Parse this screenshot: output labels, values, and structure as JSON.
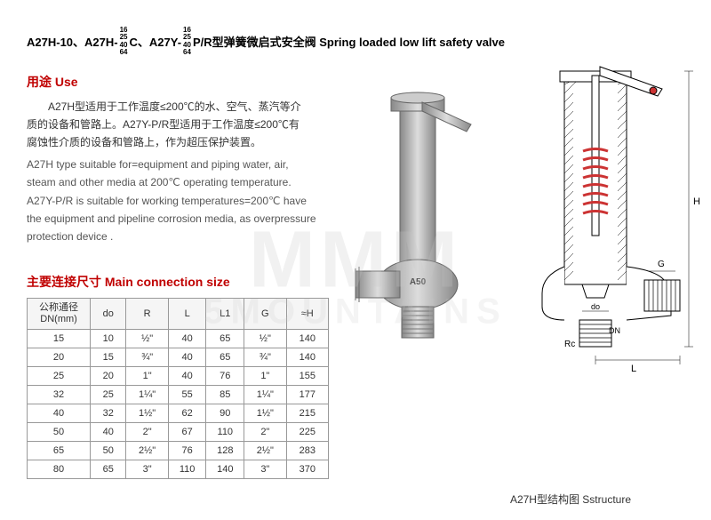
{
  "title": {
    "part1": "A27H-10、A27H-",
    "frac1": [
      "16",
      "25",
      "40",
      "64"
    ],
    "part2": "C、A27Y-",
    "frac2": [
      "16",
      "25",
      "40",
      "64"
    ],
    "part3": "P/R型弹簧微启式安全阀 Spring loaded low lift safety valve"
  },
  "use_header": "用途 Use",
  "use_cn_line1": "A27H型适用于工作温度≤200℃的水、空气、蒸汽等介",
  "use_cn_line2": "质的设备和管路上。A27Y-P/R型适用于工作温度≤200℃有",
  "use_cn_line3": "腐蚀性介质的设备和管路上，作为超压保护装置。",
  "use_en_line1": "A27H type suitable for=equipment and piping water, air,",
  "use_en_line2": "steam and other media at 200℃ operating temperature.",
  "use_en_line3": "A27Y-P/R is suitable for working temperatures=200℃ have",
  "use_en_line4": "the equipment and pipeline corrosion media, as overpressure",
  "use_en_line5": "protection device .",
  "table_header": "主要连接尺寸 Main connection size",
  "table": {
    "columns": [
      "公称通径 DN(mm)",
      "do",
      "R",
      "L",
      "L1",
      "G",
      "≈H"
    ],
    "rows": [
      [
        "15",
        "10",
        "½\"",
        "40",
        "65",
        "½\"",
        "140"
      ],
      [
        "20",
        "15",
        "¾\"",
        "40",
        "65",
        "¾\"",
        "140"
      ],
      [
        "25",
        "20",
        "1\"",
        "40",
        "76",
        "1\"",
        "155"
      ],
      [
        "32",
        "25",
        "1¼\"",
        "55",
        "85",
        "1¼\"",
        "177"
      ],
      [
        "40",
        "32",
        "1½\"",
        "62",
        "90",
        "1½\"",
        "215"
      ],
      [
        "50",
        "40",
        "2\"",
        "67",
        "110",
        "2\"",
        "225"
      ],
      [
        "65",
        "50",
        "2½\"",
        "76",
        "128",
        "2½\"",
        "283"
      ],
      [
        "80",
        "65",
        "3\"",
        "110",
        "140",
        "3\"",
        "370"
      ]
    ],
    "col_widths": [
      "60px",
      "34px",
      "40px",
      "36px",
      "36px",
      "40px",
      "40px"
    ]
  },
  "figure_caption": "A27H型结构图 Sstructure",
  "diagram_labels": {
    "H": "H",
    "do": "do",
    "DN": "DN",
    "Rc": "Rc",
    "G": "G",
    "L": "L"
  },
  "watermark": "MMM",
  "watermark_sub": "5MOUNTAINS",
  "colors": {
    "header_red": "#c00000",
    "text_black": "#333333",
    "text_gray": "#555555",
    "border": "#999999",
    "spring_red": "#cc3333",
    "valve_gray": "#aaaaaa",
    "valve_dark": "#666666"
  }
}
